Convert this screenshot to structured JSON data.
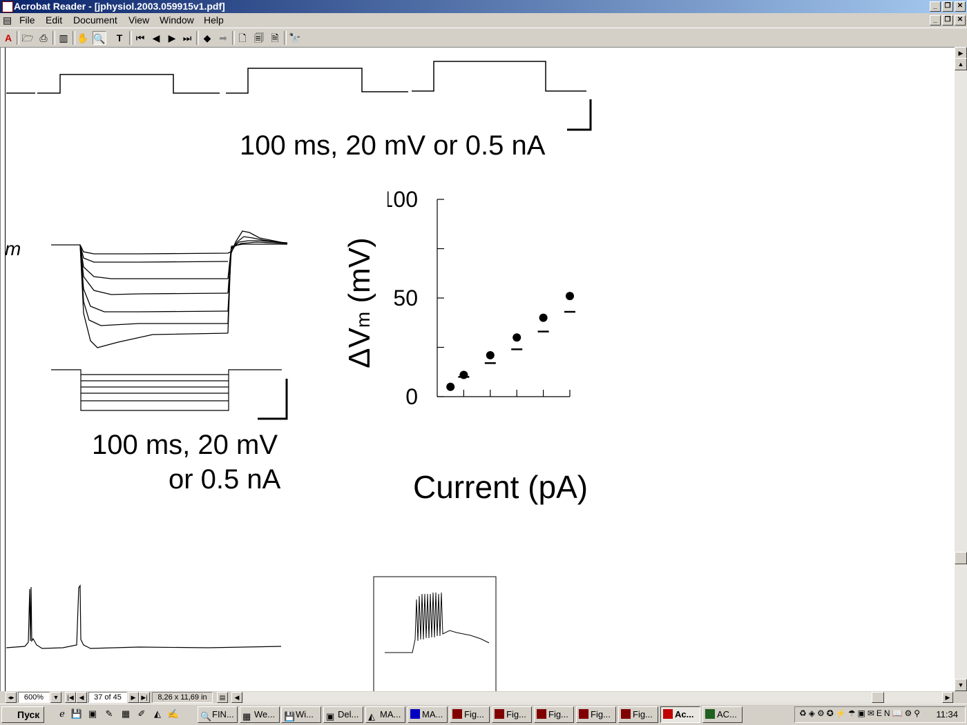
{
  "window": {
    "title": "Acrobat Reader - [jphysiol.2003.059915v1.pdf]"
  },
  "menu": [
    "File",
    "Edit",
    "Document",
    "View",
    "Window",
    "Help"
  ],
  "toolbar_icons": [
    "acrobat-logo-icon",
    "open-icon",
    "print-icon",
    "show-hide-navigation-icon",
    "hand-tool-icon",
    "zoom-tool-icon",
    "text-select-icon",
    "first-page-icon",
    "previous-page-icon",
    "next-page-icon",
    "last-page-icon",
    "go-back-icon",
    "go-forward-icon",
    "actual-size-icon",
    "fit-in-window-icon",
    "fit-width-icon",
    "find-icon"
  ],
  "document": {
    "top_scale_label": "100 ms, 20 mV or 0.5 nA",
    "left_scale_label_line1": "100 ms, 20 mV",
    "left_scale_label_line2": "or 0.5 nA",
    "left_partial_label": "m",
    "plot": {
      "ylabel_delta": "Δ",
      "ylabel_v": "V",
      "ylabel_sub": "m",
      "ylabel_unit": " (mV)",
      "xlabel": "Current (pA)"
    }
  },
  "chart_data": {
    "type": "scatter",
    "title": "",
    "xlabel": "Current (pA)",
    "ylabel": "ΔVm (mV)",
    "xlim": [
      0,
      500
    ],
    "ylim": [
      0,
      100
    ],
    "xticks": [
      "0",
      "500"
    ],
    "yticks": [
      "0",
      "50",
      "100"
    ],
    "series": [
      {
        "marker": "circle",
        "x": [
          50,
          100,
          200,
          300,
          400,
          500
        ],
        "y": [
          5,
          11,
          21,
          30,
          40,
          51
        ]
      },
      {
        "marker": "dash",
        "x": [
          100,
          200,
          300,
          400,
          500
        ],
        "y": [
          10,
          17,
          24,
          33,
          43
        ]
      }
    ]
  },
  "status": {
    "zoom": "600%",
    "page": "37 of 45",
    "page_size": "8,26 x 11,69 in"
  },
  "taskbar": {
    "start": "Пуск",
    "buttons": [
      "FIN...",
      "We...",
      "Wi...",
      "Del...",
      "MA...",
      "MA...",
      "Fig...",
      "Fig...",
      "Fig...",
      "Fig...",
      "Fig...",
      "Ac...",
      "AC..."
    ],
    "clock": "11:34"
  }
}
